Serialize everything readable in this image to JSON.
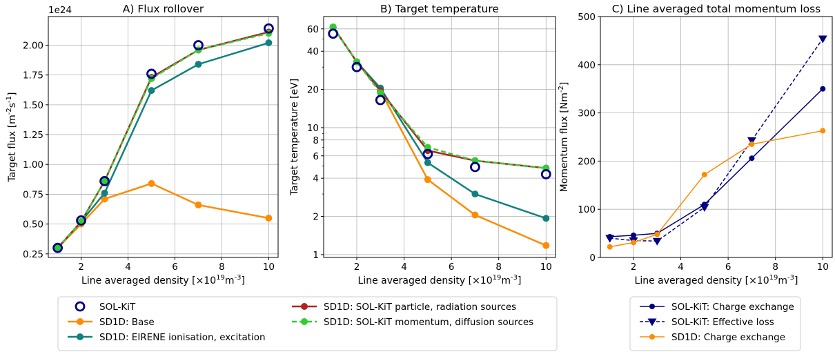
{
  "chart_data": [
    {
      "type": "line",
      "title": "A) Flux rollover",
      "xlabel": "Line averaged density [×10¹⁹m⁻³]",
      "ylabel": "Target flux [m⁻²s⁻¹]",
      "offset_text": "1e24",
      "xlim": [
        0.6,
        10.4
      ],
      "ylim": [
        0.22,
        2.24
      ],
      "x_ticks": [
        2,
        4,
        6,
        8,
        10
      ],
      "y_ticks": [
        0.25,
        0.5,
        0.75,
        1.0,
        1.25,
        1.5,
        1.75,
        2.0
      ],
      "y_tick_labels": [
        "0.25",
        "0.50",
        "0.75",
        "1.00",
        "1.25",
        "1.50",
        "1.75",
        "2.00"
      ],
      "grid": true,
      "x": [
        1,
        2,
        3,
        5,
        7,
        10
      ],
      "series": [
        {
          "name": "SD1D: Base",
          "color": "#ff8c00",
          "values": [
            0.3,
            0.5,
            0.71,
            0.84,
            0.66,
            0.55
          ]
        },
        {
          "name": "SD1D: EIRENE ionisation, excitation",
          "color": "#108080",
          "values": [
            0.3,
            0.52,
            0.76,
            1.62,
            1.84,
            2.02
          ]
        },
        {
          "name": "SD1D: SOL-KiT particle, radiation sources",
          "color": "#b22222",
          "values": [
            0.3,
            0.52,
            0.86,
            1.73,
            1.96,
            2.11
          ]
        },
        {
          "name": "SD1D: SOL-KiT momentum, diffusion sources",
          "color": "#32cd32",
          "dashed": true,
          "values": [
            0.3,
            0.52,
            0.86,
            1.72,
            1.96,
            2.1
          ]
        },
        {
          "name": "SOL-KiT",
          "color": "#000080",
          "marker": "open-circle",
          "values": [
            0.3,
            0.53,
            0.86,
            1.76,
            2.0,
            2.14
          ]
        }
      ]
    },
    {
      "type": "line",
      "title": "B) Target temperature",
      "xlabel": "Line averaged density [×10¹⁹m⁻³]",
      "ylabel": "Target temperature [eV]",
      "yscale": "log",
      "xlim": [
        0.6,
        10.4
      ],
      "ylim": [
        0.95,
        75
      ],
      "x_ticks": [
        2,
        4,
        6,
        8,
        10
      ],
      "y_ticks": [
        1,
        2,
        4,
        6,
        8,
        10,
        20,
        40,
        60
      ],
      "y_tick_labels": [
        "1",
        "2",
        "4",
        "6",
        "8",
        "10",
        "20",
        "40",
        "60"
      ],
      "grid": true,
      "x": [
        1,
        2,
        3,
        5,
        7,
        10
      ],
      "series": [
        {
          "name": "SD1D: Base",
          "color": "#ff8c00",
          "values": [
            62,
            33,
            19.5,
            3.9,
            2.05,
            1.18
          ]
        },
        {
          "name": "SD1D: EIRENE ionisation, excitation",
          "color": "#108080",
          "values": [
            62,
            33,
            20.5,
            5.3,
            3.0,
            1.93
          ]
        },
        {
          "name": "SD1D: SOL-KiT particle, radiation sources",
          "color": "#b22222",
          "values": [
            62,
            33,
            19.5,
            6.6,
            5.5,
            4.8
          ]
        },
        {
          "name": "SD1D: SOL-KiT momentum, diffusion sources",
          "color": "#32cd32",
          "dashed": true,
          "values": [
            62,
            33,
            18.8,
            7.0,
            5.5,
            4.8
          ]
        },
        {
          "name": "SOL-KiT",
          "color": "#000080",
          "marker": "open-circle",
          "values": [
            55,
            30,
            16.5,
            6.2,
            4.9,
            4.3
          ]
        }
      ]
    },
    {
      "type": "line",
      "title": "C) Line averaged total momentum loss",
      "xlabel": "Line averaged density [×10¹⁹m⁻³]",
      "ylabel": "Momentum flux [Nm⁻²]",
      "xlim": [
        0.6,
        10.4
      ],
      "ylim": [
        0,
        500
      ],
      "x_ticks": [
        2,
        4,
        6,
        8,
        10
      ],
      "y_ticks": [
        0,
        100,
        200,
        300,
        400,
        500
      ],
      "y_tick_labels": [
        "0",
        "100",
        "200",
        "300",
        "400",
        "500"
      ],
      "grid": true,
      "x": [
        1,
        2,
        3,
        5,
        7,
        10
      ],
      "series": [
        {
          "name": "SOL-KiT: Charge exchange",
          "color": "#000080",
          "marker": "circle",
          "values": [
            43,
            46,
            50,
            110,
            206,
            350
          ]
        },
        {
          "name": "SOL-KiT: Effective loss",
          "color": "#000080",
          "marker": "triangle-down",
          "dashed": true,
          "values": [
            40,
            35,
            34,
            104,
            243,
            454
          ]
        },
        {
          "name": "SD1D: Charge exchange",
          "color": "#ff8c00",
          "marker": "circle",
          "values": [
            22,
            31,
            48,
            172,
            235,
            263
          ]
        }
      ]
    }
  ],
  "legends": [
    {
      "entries": [
        {
          "label": "SOL-KiT",
          "color": "#000080",
          "style": "open-circle"
        },
        {
          "label": "SD1D: Base",
          "color": "#ff8c00",
          "style": "line-circle"
        },
        {
          "label": "SD1D: EIRENE ionisation, excitation",
          "color": "#108080",
          "style": "line-circle"
        },
        {
          "label": "SD1D: SOL-KiT particle, radiation sources",
          "color": "#b22222",
          "style": "line-circle"
        },
        {
          "label": "SD1D: SOL-KiT momentum, diffusion sources",
          "color": "#32cd32",
          "style": "dashed-circle"
        }
      ]
    },
    {
      "entries": [
        {
          "label": "SOL-KiT: Charge exchange",
          "color": "#000080",
          "style": "line-circle"
        },
        {
          "label": "SOL-KiT: Effective loss",
          "color": "#000080",
          "style": "dashed-triangle"
        },
        {
          "label": "SD1D: Charge exchange",
          "color": "#ff8c00",
          "style": "line-circle"
        }
      ]
    }
  ]
}
